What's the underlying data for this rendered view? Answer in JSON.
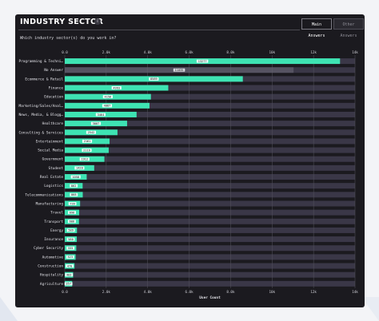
{
  "header": {
    "title": "INDUSTRY SECTOR",
    "info_icon": "i",
    "tabs": [
      {
        "label": "Main Answers",
        "active": true
      },
      {
        "label": "Other Answers",
        "active": false
      }
    ],
    "question": "Which industry sector(s) do you work in?"
  },
  "colors": {
    "bar": "#3ee3b3",
    "track": "#3a3747",
    "panel": "#1b1a1f"
  },
  "chart_data": {
    "type": "bar",
    "orientation": "horizontal",
    "xlabel": "User Count",
    "xlim": [
      0,
      14000
    ],
    "xticks": [
      0,
      2000,
      4000,
      6000,
      8000,
      10000,
      12000,
      14000
    ],
    "xtick_labels": [
      "0.0",
      "2.0k",
      "4.0k",
      "6.0k",
      "8.0k",
      "10k",
      "12k",
      "14k"
    ],
    "grid": true,
    "categories": [
      "Programming & Techni…",
      "No Answer",
      "Ecommerce & Retail",
      "Finance",
      "Education",
      "Marketing/Sales/Anal…",
      "News, Media, & Blogg…",
      "Healthcare",
      "Consulting & Services",
      "Entertainment",
      "Social Media",
      "Government",
      "Student",
      "Real Estate",
      "Logistics",
      "Telecommunications",
      "Manufacturing",
      "Travel",
      "Transport",
      "Energy",
      "Insurance",
      "Cyber Security",
      "Automotive",
      "Construction",
      "Hospitality",
      "Agriculture"
    ],
    "values": [
      13277,
      11035,
      8589,
      4993,
      4156,
      4087,
      3464,
      3007,
      2542,
      2161,
      2119,
      1912,
      1420,
      1058,
      862,
      868,
      739,
      696,
      686,
      589,
      580,
      555,
      523,
      470,
      403,
      357
    ],
    "value_labels": [
      "13277",
      "11035",
      "8589",
      "4993",
      "4156",
      "4087",
      "3464",
      "3007",
      "2542",
      "2161",
      "2119",
      "1912",
      "1420",
      "1058",
      "862",
      "868",
      "739",
      "696",
      "686",
      "589",
      "580",
      "555",
      "523",
      "470",
      "403",
      "357"
    ],
    "highlighted": [
      true,
      false,
      true,
      true,
      true,
      true,
      true,
      true,
      true,
      true,
      true,
      true,
      true,
      true,
      true,
      true,
      true,
      true,
      true,
      true,
      true,
      true,
      true,
      true,
      true,
      true
    ]
  }
}
